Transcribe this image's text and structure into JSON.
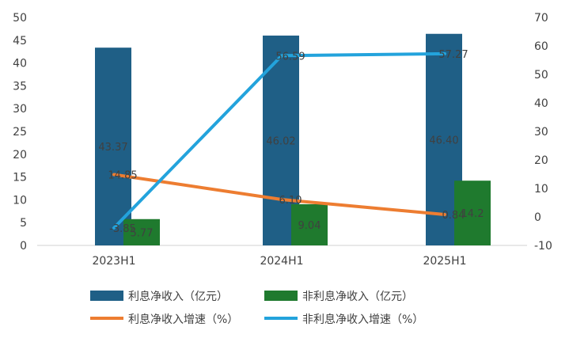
{
  "chart_data": {
    "type": "bar",
    "categories": [
      "2023H1",
      "2024H1",
      "2025H1"
    ],
    "series": [
      {
        "name": "利息净收入（亿元）",
        "kind": "bar",
        "axis": "left",
        "color": "#1f5f86",
        "values": [
          43.37,
          46.02,
          46.4
        ],
        "labels": [
          "43.37",
          "46.02",
          "46.40"
        ]
      },
      {
        "name": "非利息净收入（亿元）",
        "kind": "bar",
        "axis": "left",
        "color": "#1f7a2e",
        "values": [
          5.77,
          9.04,
          14.2
        ],
        "labels": [
          "5.77",
          "9.04",
          "14.2"
        ]
      },
      {
        "name": "利息净收入增速（%）",
        "kind": "line",
        "axis": "right",
        "color": "#ed7d31",
        "values": [
          14.85,
          6.1,
          0.84
        ],
        "labels": [
          "14.85",
          "6.10",
          "0.84"
        ]
      },
      {
        "name": "非利息净收入增速（%）",
        "kind": "line",
        "axis": "right",
        "color": "#23a3dc",
        "values": [
          -3.85,
          56.59,
          57.27
        ],
        "labels": [
          "-3.85",
          "56.59",
          "57.27"
        ]
      }
    ],
    "y_left": {
      "min": 0,
      "max": 50,
      "step": 5
    },
    "y_right": {
      "min": -10,
      "max": 70,
      "step": 10
    },
    "grid": false,
    "legend_position": "bottom"
  }
}
